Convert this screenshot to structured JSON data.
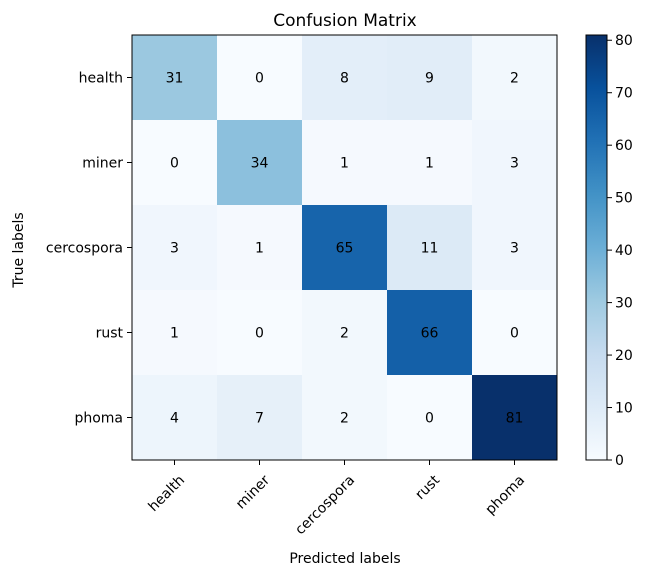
{
  "chart_data": {
    "type": "heatmap",
    "title": "Confusion Matrix",
    "xlabel": "Predicted labels",
    "ylabel": "True labels",
    "x_categories": [
      "health",
      "miner",
      "cercospora",
      "rust",
      "phoma"
    ],
    "y_categories": [
      "health",
      "miner",
      "cercospora",
      "rust",
      "phoma"
    ],
    "values": [
      [
        31,
        0,
        8,
        9,
        2
      ],
      [
        0,
        34,
        1,
        1,
        3
      ],
      [
        3,
        1,
        65,
        11,
        3
      ],
      [
        1,
        0,
        2,
        66,
        0
      ],
      [
        4,
        7,
        2,
        0,
        81
      ]
    ],
    "colormap": "Blues",
    "vmin": 0,
    "vmax": 81,
    "colorbar_ticks": [
      0,
      10,
      20,
      30,
      40,
      50,
      60,
      70,
      80
    ],
    "x_tick_rotation_deg": 45,
    "grid": false,
    "colors": {
      "low": "#f7fbff",
      "high": "#08306b",
      "text_dark": "#08306b",
      "text_light": "#f7fbff"
    }
  }
}
